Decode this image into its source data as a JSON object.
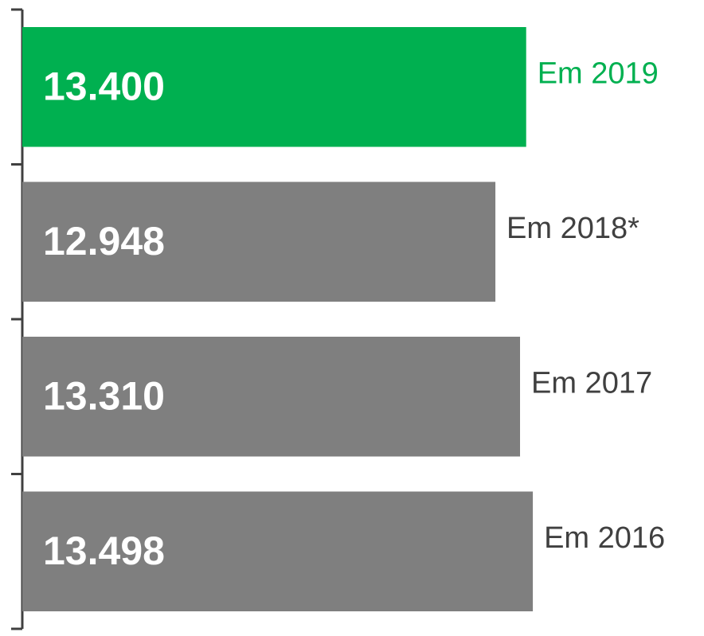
{
  "chart_data": {
    "type": "bar",
    "orientation": "horizontal",
    "categories": [
      "Em 2019",
      "Em 2018*",
      "Em 2017",
      "Em 2016"
    ],
    "values": [
      13400,
      12948,
      13310,
      13498
    ],
    "value_labels": [
      "13.400",
      "12.948",
      "13.310",
      "13.498"
    ],
    "colors": [
      "#00b050",
      "#7f7f7f",
      "#7f7f7f",
      "#7f7f7f"
    ],
    "label_colors": [
      "#00b050",
      "#404040",
      "#404040",
      "#404040"
    ],
    "xlim": [
      6000,
      14000
    ]
  }
}
